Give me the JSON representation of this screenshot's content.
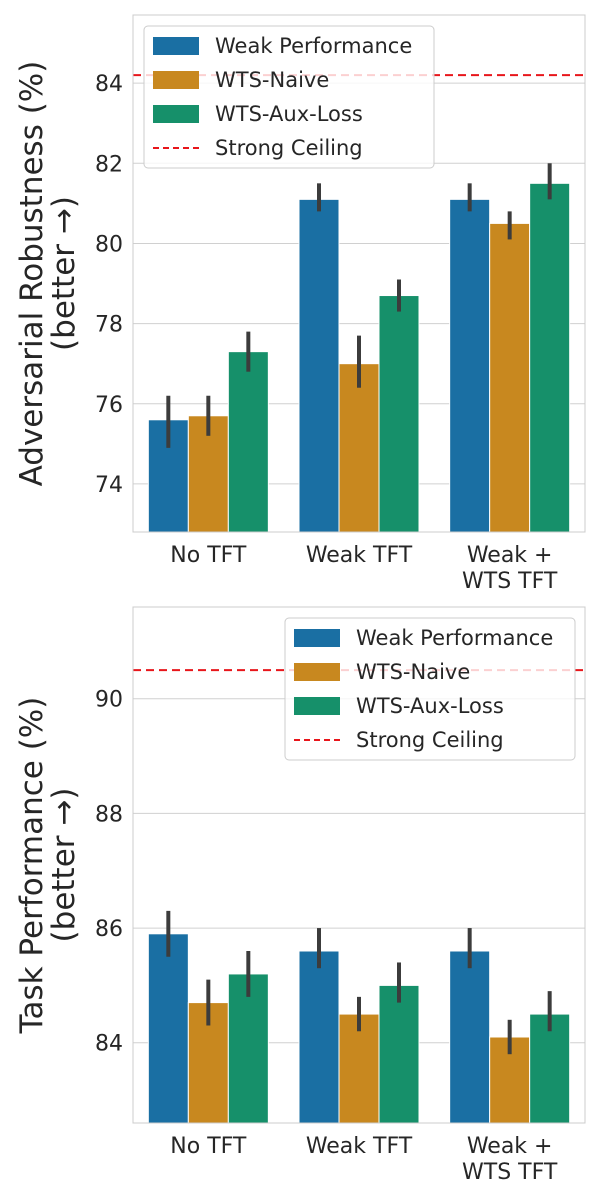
{
  "chart_data": [
    {
      "type": "bar",
      "ylabel": [
        "Adversarial Robustness (%)",
        "(better →)"
      ],
      "categories": [
        [
          "No TFT"
        ],
        [
          "Weak TFT"
        ],
        [
          "Weak +",
          "WTS TFT"
        ]
      ],
      "ylim": [
        72.8,
        85.7
      ],
      "yticks": [
        74,
        76,
        78,
        80,
        82,
        84
      ],
      "grid": true,
      "legend_position": "top-left",
      "series": [
        {
          "name": "Weak Performance",
          "color": "#1a6fa3",
          "values": [
            75.6,
            81.1,
            81.1
          ],
          "err_low": [
            74.9,
            80.8,
            80.8
          ],
          "err_high": [
            76.2,
            81.5,
            81.5
          ]
        },
        {
          "name": "WTS-Naive",
          "color": "#c8881f",
          "values": [
            75.7,
            77.0,
            80.5
          ],
          "err_low": [
            75.2,
            76.4,
            80.1
          ],
          "err_high": [
            76.2,
            77.7,
            80.8
          ]
        },
        {
          "name": "WTS-Aux-Loss",
          "color": "#16906a",
          "values": [
            77.3,
            78.7,
            81.5
          ],
          "err_low": [
            76.8,
            78.3,
            81.1
          ],
          "err_high": [
            77.8,
            79.1,
            82.0
          ]
        }
      ],
      "reference_line": {
        "name": "Strong Ceiling",
        "value": 84.2,
        "color": "#e8161b"
      }
    },
    {
      "type": "bar",
      "ylabel": [
        "Task Performance (%)",
        "(better →)"
      ],
      "categories": [
        [
          "No TFT"
        ],
        [
          "Weak TFT"
        ],
        [
          "Weak +",
          "WTS TFT"
        ]
      ],
      "ylim": [
        82.6,
        91.6
      ],
      "yticks": [
        84,
        86,
        88,
        90
      ],
      "grid": true,
      "legend_position": "top-right",
      "series": [
        {
          "name": "Weak Performance",
          "color": "#1a6fa3",
          "values": [
            85.9,
            85.6,
            85.6
          ],
          "err_low": [
            85.5,
            85.3,
            85.3
          ],
          "err_high": [
            86.3,
            86.0,
            86.0
          ]
        },
        {
          "name": "WTS-Naive",
          "color": "#c8881f",
          "values": [
            84.7,
            84.5,
            84.1
          ],
          "err_low": [
            84.3,
            84.2,
            83.8
          ],
          "err_high": [
            85.1,
            84.8,
            84.4
          ]
        },
        {
          "name": "WTS-Aux-Loss",
          "color": "#16906a",
          "values": [
            85.2,
            85.0,
            84.5
          ],
          "err_low": [
            84.8,
            84.7,
            84.2
          ],
          "err_high": [
            85.6,
            85.4,
            84.9
          ]
        }
      ],
      "reference_line": {
        "name": "Strong Ceiling",
        "value": 90.5,
        "color": "#e8161b"
      }
    }
  ]
}
